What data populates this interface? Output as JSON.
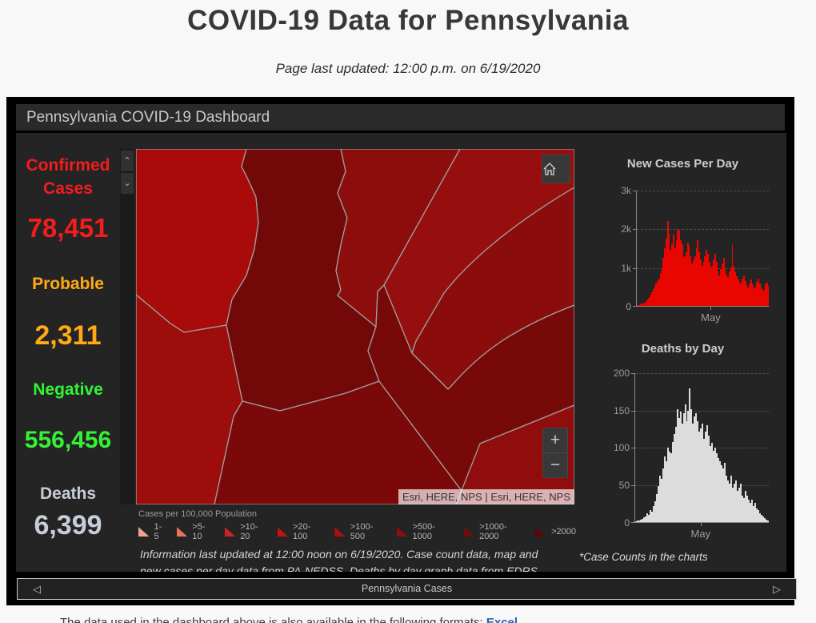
{
  "page": {
    "title": "COVID-19 Data for Pennsylvania",
    "updated_line": "Page last updated: 12:00 p.m. on 6/19/2020",
    "footer_clipped_text": "The data used in the dashboard above is also available in the following formats:",
    "footer_link_text": "Excel"
  },
  "dashboard": {
    "header": "Pennsylvania COVID-19 Dashboard",
    "stats": [
      {
        "label": "Confirmed",
        "label2": "Cases",
        "value": "78,451",
        "color": "#f41c1c"
      },
      {
        "label": "Probable",
        "value": "2,311",
        "color": "#ffaa14"
      },
      {
        "label": "Negative",
        "value": "556,456",
        "color": "#34f334"
      },
      {
        "label": "Deaths",
        "value": "6,399",
        "color": "#c6ccd8"
      }
    ],
    "map": {
      "attribution": "Esri, HERE, NPS | Esri, HERE, NPS",
      "zoom_in": "+",
      "zoom_out": "−",
      "legend": {
        "title": "Cases per 100,000 Population",
        "items": [
          {
            "label": "1-5",
            "color": "#f2a28e"
          },
          {
            "label": ">5-10",
            "color": "#e9705a"
          },
          {
            "label": ">10-20",
            "color": "#cf2027"
          },
          {
            "label": ">20-100",
            "color": "#c01316"
          },
          {
            "label": ">100-500",
            "color": "#a81014"
          },
          {
            "label": ">500-1000",
            "color": "#8f0d10"
          },
          {
            "label": ">1000-2000",
            "color": "#740a0c"
          },
          {
            "label": ">2000",
            "color": "#5c0708"
          }
        ]
      }
    },
    "info_line1": "Information last updated at 12:00 noon on 6/19/2020. Case count data, map and",
    "info_line2": "new cases per day data from PA-NEDSS.  Deaths by day graph data from EDRS",
    "charts_note": "*Case Counts in the charts",
    "bottom_bar": {
      "label": "Pennsylvania Cases",
      "prev": "◁",
      "next": "▷"
    }
  },
  "chart_data": [
    {
      "type": "bar",
      "title": "New Cases Per Day",
      "bar_color": "#ea0600",
      "ylim": [
        0,
        3000
      ],
      "yticks": [
        "3k",
        "2k",
        "1k",
        "0"
      ],
      "xtick": "May",
      "xtick_pos": 0.56,
      "x_range": "mid-March 2020 to 6/19/2020",
      "values": [
        20,
        30,
        45,
        55,
        70,
        90,
        120,
        160,
        210,
        280,
        350,
        430,
        520,
        580,
        640,
        700,
        850,
        1000,
        1250,
        1500,
        1750,
        2200,
        1900,
        1450,
        1600,
        1850,
        1500,
        1700,
        2000,
        1950,
        1700,
        1600,
        1250,
        1300,
        1400,
        1650,
        1550,
        1300,
        1100,
        1200,
        1300,
        1500,
        1700,
        1400,
        1200,
        1050,
        1150,
        1300,
        1450,
        1350,
        1150,
        950,
        1050,
        1200,
        1350,
        1150,
        900,
        800,
        950,
        1100,
        1250,
        1000,
        820,
        760,
        900,
        1000,
        1600,
        1050,
        900,
        780,
        680,
        620,
        580,
        700,
        800,
        640,
        540,
        480,
        580,
        680,
        560,
        440,
        480,
        620,
        700,
        580,
        500,
        440,
        400,
        560,
        600,
        520
      ]
    },
    {
      "type": "bar",
      "title": "Deaths by Day",
      "bar_color": "#dcdcdc",
      "ylim": [
        0,
        200
      ],
      "yticks": [
        "200",
        "150",
        "100",
        "50",
        "0"
      ],
      "xtick": "May",
      "xtick_pos": 0.49,
      "x_range": "mid-March 2020 to 6/19/2020",
      "values": [
        1,
        2,
        2,
        3,
        4,
        6,
        8,
        12,
        10,
        16,
        14,
        22,
        28,
        38,
        48,
        62,
        58,
        72,
        88,
        82,
        100,
        95,
        92,
        108,
        118,
        128,
        152,
        140,
        148,
        132,
        146,
        158,
        136,
        150,
        180,
        152,
        132,
        142,
        146,
        136,
        122,
        126,
        132,
        112,
        122,
        130,
        116,
        102,
        106,
        96,
        100,
        92,
        86,
        82,
        76,
        72,
        80,
        62,
        56,
        52,
        62,
        46,
        52,
        56,
        42,
        46,
        52,
        36,
        32,
        42,
        36,
        30,
        26,
        30,
        22,
        26,
        18,
        16,
        12,
        10,
        8,
        5,
        3,
        2
      ]
    }
  ]
}
